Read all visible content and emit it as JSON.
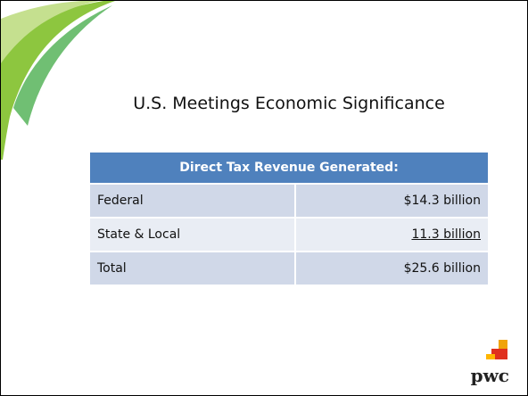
{
  "slide": {
    "title": "U.S. Meetings Economic Significance",
    "table": {
      "header": "Direct Tax Revenue Generated:",
      "rows": [
        [
          "Federal",
          "$14.3 billion"
        ],
        [
          "State & Local",
          "11.3 billion"
        ],
        [
          "Total",
          "$25.6 billion"
        ]
      ]
    },
    "logo": "pwc"
  }
}
